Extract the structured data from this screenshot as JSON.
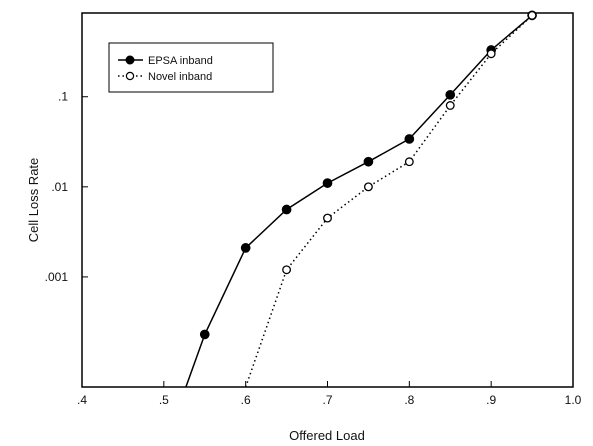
{
  "chart_data": {
    "type": "line",
    "title": "",
    "xlabel": "Offered Load",
    "ylabel": "Cell Loss Rate",
    "xlim": [
      0.4,
      1.0
    ],
    "ylim": [
      6e-05,
      0.85
    ],
    "yscale": "log",
    "x_ticks": [
      {
        "value": 0.4,
        "label": ".4"
      },
      {
        "value": 0.5,
        "label": ".5"
      },
      {
        "value": 0.6,
        "label": ".6"
      },
      {
        "value": 0.7,
        "label": ".7"
      },
      {
        "value": 0.8,
        "label": ".8"
      },
      {
        "value": 0.9,
        "label": ".9"
      },
      {
        "value": 1.0,
        "label": "1.0"
      }
    ],
    "y_ticks": [
      {
        "value": 0.001,
        "label": ".001"
      },
      {
        "value": 0.01,
        "label": ".01"
      },
      {
        "value": 0.1,
        "label": ".1"
      }
    ],
    "grid": false,
    "legend_position": "top-left",
    "series": [
      {
        "name": "EPSA inband",
        "color": "#000000",
        "line_style": "solid",
        "marker": "filled-circle",
        "x": [
          0.55,
          0.6,
          0.65,
          0.7,
          0.75,
          0.8,
          0.85,
          0.9,
          0.95
        ],
        "y": [
          0.00023,
          0.0021,
          0.0056,
          0.011,
          0.019,
          0.034,
          0.105,
          0.33,
          0.8
        ],
        "start_x": 0.527,
        "start_y": 6e-05
      },
      {
        "name": "Novel inband",
        "color": "#000000",
        "line_style": "dotted",
        "marker": "open-circle",
        "x": [
          0.65,
          0.7,
          0.75,
          0.8,
          0.85,
          0.9,
          0.95
        ],
        "y": [
          0.0012,
          0.0045,
          0.01,
          0.019,
          0.08,
          0.3,
          0.8
        ],
        "start_x": 0.6,
        "start_y": 6e-05
      }
    ]
  }
}
